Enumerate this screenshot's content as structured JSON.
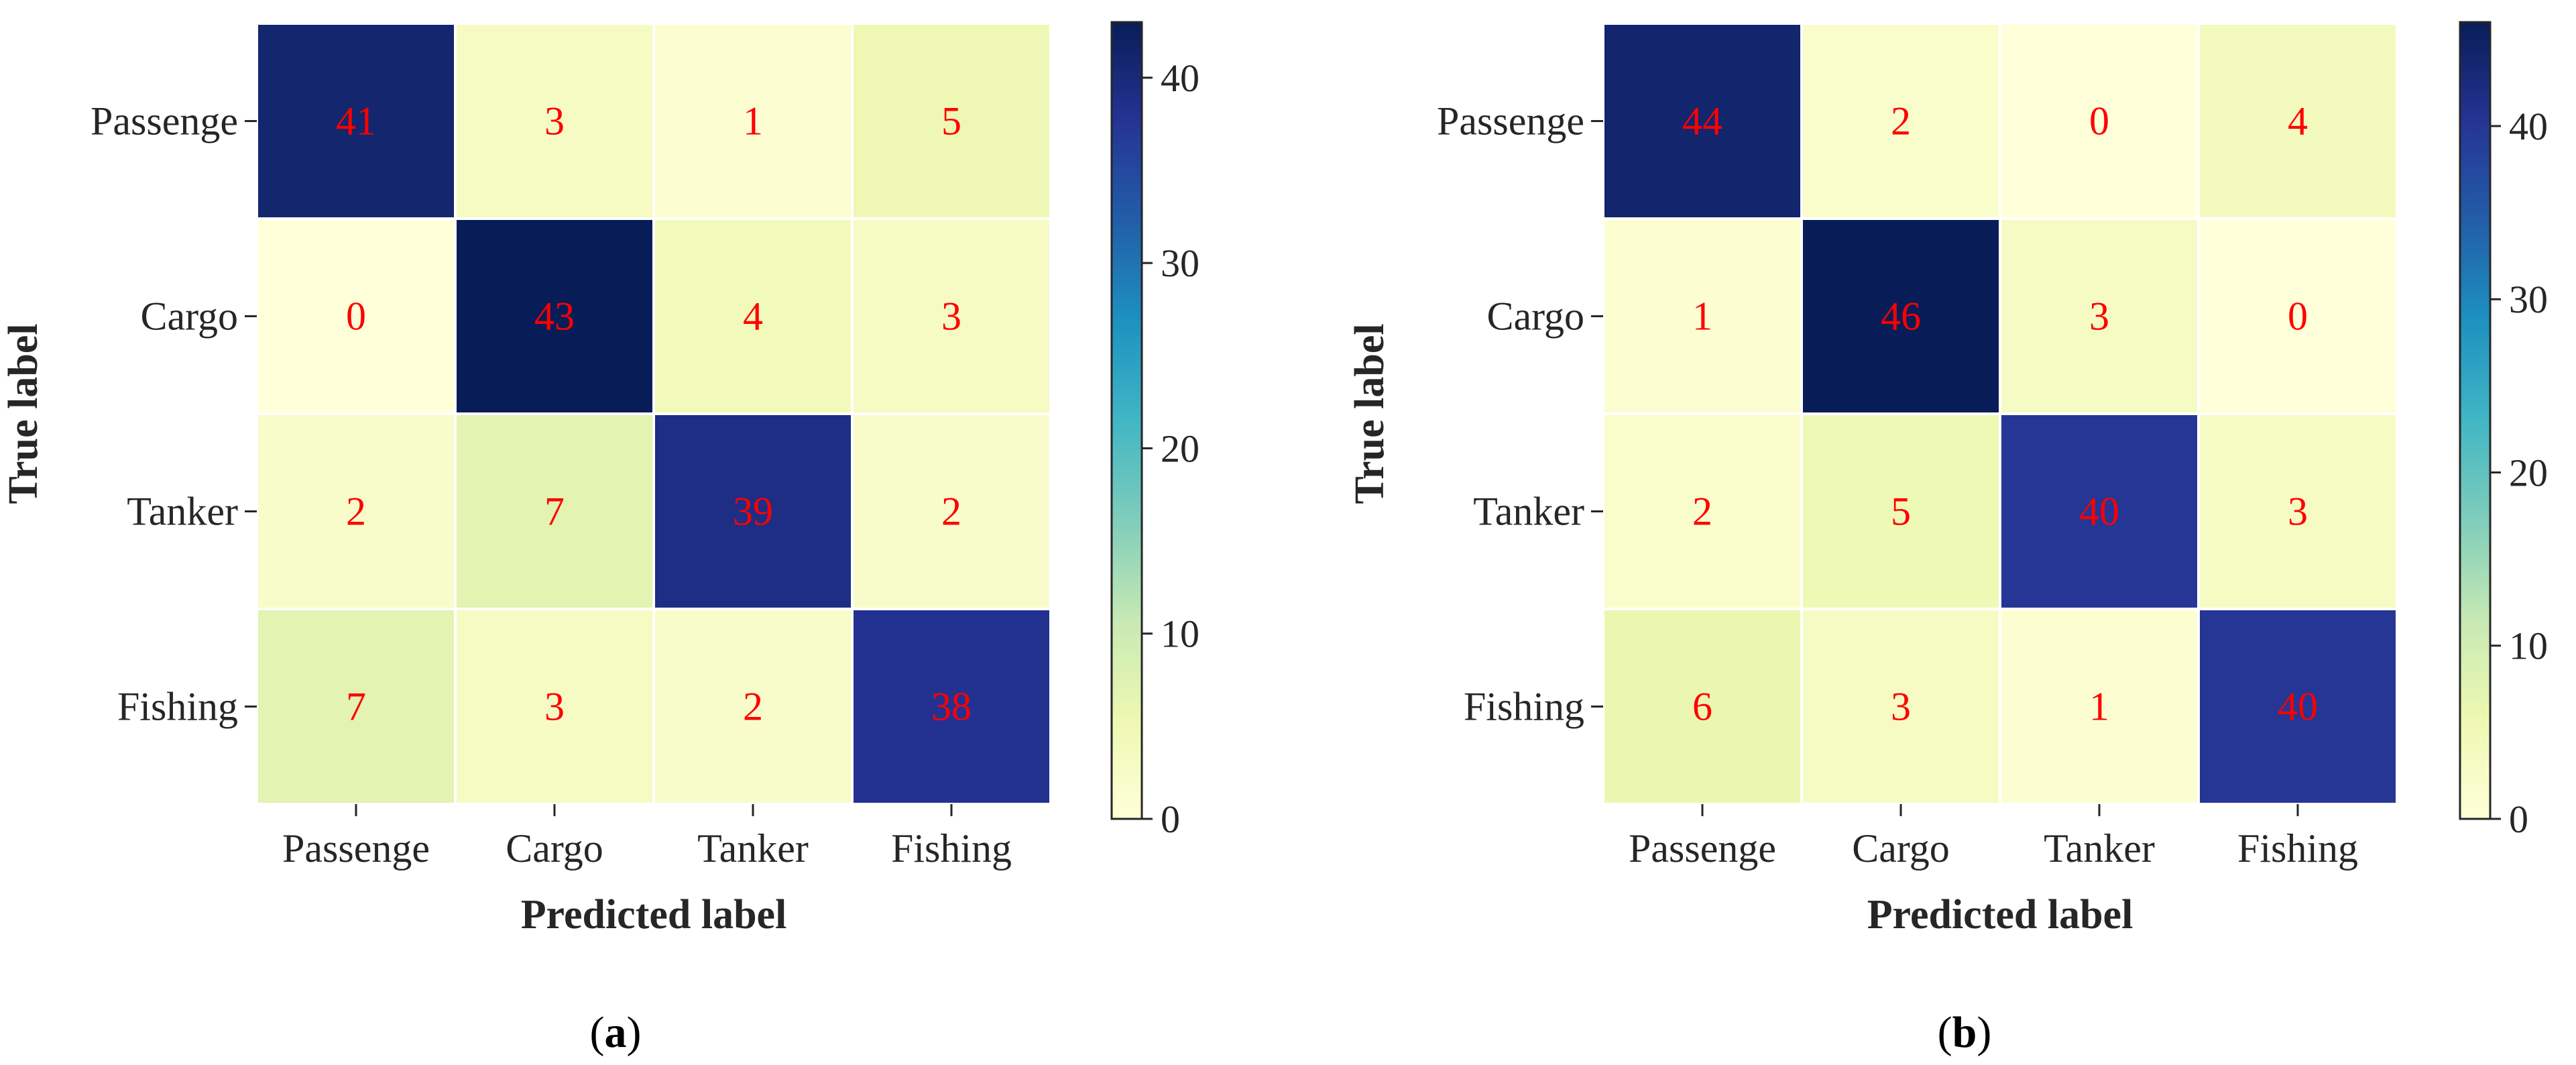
{
  "chart_data": [
    {
      "type": "heatmap",
      "panel_label": "a",
      "xlabel": "Predicted label",
      "ylabel": "True label",
      "x_categories": [
        "Passenge",
        "Cargo",
        "Tanker",
        "Fishing"
      ],
      "y_categories": [
        "Passenge",
        "Cargo",
        "Tanker",
        "Fishing"
      ],
      "matrix": [
        [
          41,
          3,
          1,
          5
        ],
        [
          0,
          43,
          4,
          3
        ],
        [
          2,
          7,
          39,
          2
        ],
        [
          7,
          3,
          2,
          38
        ]
      ],
      "colormap": "YlGnBu",
      "colorbar": {
        "vmin": 0,
        "vmax": 43,
        "ticks": [
          0,
          10,
          20,
          30,
          40
        ]
      },
      "annotation_color": "#ff0000",
      "grid": false
    },
    {
      "type": "heatmap",
      "panel_label": "b",
      "xlabel": "Predicted label",
      "ylabel": "True label",
      "x_categories": [
        "Passenge",
        "Cargo",
        "Tanker",
        "Fishing"
      ],
      "y_categories": [
        "Passenge",
        "Cargo",
        "Tanker",
        "Fishing"
      ],
      "matrix": [
        [
          44,
          2,
          0,
          4
        ],
        [
          1,
          46,
          3,
          0
        ],
        [
          2,
          5,
          40,
          3
        ],
        [
          6,
          3,
          1,
          40
        ]
      ],
      "colormap": "YlGnBu",
      "colorbar": {
        "vmin": 0,
        "vmax": 46,
        "ticks": [
          0,
          10,
          20,
          30,
          40
        ]
      },
      "annotation_color": "#ff0000",
      "grid": false
    }
  ]
}
